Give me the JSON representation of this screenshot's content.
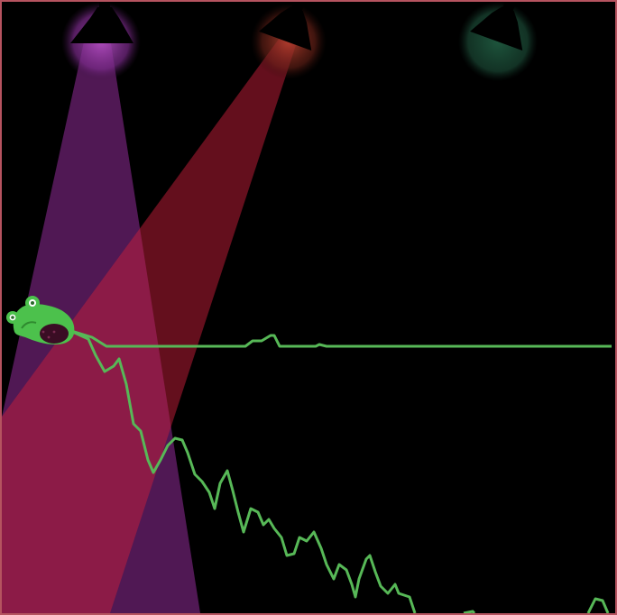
{
  "game": {
    "spotlights": [
      {
        "name": "spotlight-purple",
        "color": "#b24fc0",
        "on": true
      },
      {
        "name": "spotlight-red",
        "color": "#c0342c",
        "on": true
      },
      {
        "name": "spotlight-green",
        "color": "#2f7a55",
        "on": false
      }
    ],
    "frog": {
      "color": "#4cc14c"
    },
    "tongue_color": "#57b857"
  }
}
